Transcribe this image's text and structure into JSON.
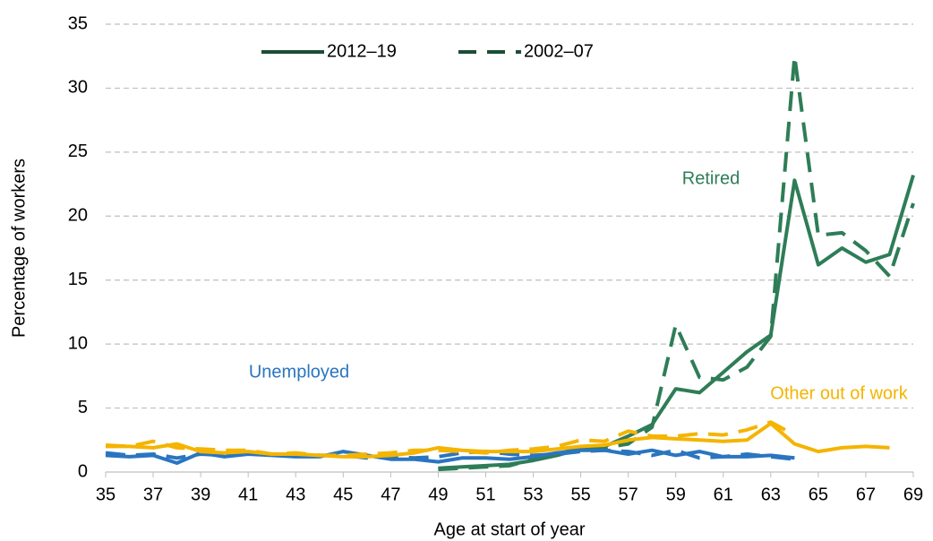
{
  "chart_data": {
    "type": "line",
    "x_label": "Age at start of year",
    "y_label": "Percentage of workers",
    "x": [
      35,
      36,
      37,
      38,
      39,
      40,
      41,
      42,
      43,
      44,
      45,
      46,
      47,
      48,
      49,
      50,
      51,
      52,
      53,
      54,
      55,
      56,
      57,
      58,
      59,
      60,
      61,
      62,
      63,
      64,
      65,
      66,
      67,
      68,
      69
    ],
    "xlim": [
      35,
      69
    ],
    "xticks": [
      35,
      37,
      39,
      41,
      43,
      45,
      47,
      49,
      51,
      53,
      55,
      57,
      59,
      61,
      63,
      65,
      67,
      69
    ],
    "ylim": [
      0,
      35
    ],
    "yticks": [
      0,
      5,
      10,
      15,
      20,
      25,
      30,
      35
    ],
    "grid": true,
    "legend": {
      "position": "top",
      "color": "#1d4d36",
      "entries": [
        {
          "name": "2012–19",
          "dash": false
        },
        {
          "name": "2002–07",
          "dash": true
        }
      ]
    },
    "groups": [
      {
        "label": "Retired",
        "color": "#2e7d57",
        "series": [
          {
            "values": [
              null,
              null,
              null,
              null,
              null,
              null,
              null,
              null,
              null,
              null,
              null,
              null,
              null,
              null,
              0.3,
              0.4,
              0.5,
              0.6,
              0.9,
              1.3,
              1.8,
              2.0,
              2.8,
              3.7,
              6.5,
              6.2,
              7.8,
              9.4,
              10.7,
              22.8,
              16.2,
              17.5,
              16.4,
              17.0,
              23.2
            ]
          },
          {
            "values": [
              null,
              null,
              null,
              null,
              null,
              null,
              null,
              null,
              null,
              null,
              null,
              null,
              null,
              null,
              0.2,
              0.3,
              0.4,
              0.5,
              1.0,
              1.4,
              1.9,
              1.9,
              2.2,
              3.5,
              11.5,
              7.4,
              7.2,
              8.2,
              10.6,
              32.5,
              18.5,
              18.7,
              17.3,
              15.3,
              21.0
            ]
          }
        ]
      },
      {
        "label": "Unemployed",
        "color": "#2a75c0",
        "series": [
          {
            "values": [
              1.3,
              1.2,
              1.3,
              0.7,
              1.5,
              1.2,
              1.4,
              1.3,
              1.2,
              1.2,
              1.6,
              1.3,
              1.0,
              1.0,
              0.8,
              1.1,
              1.1,
              1.0,
              1.2,
              1.5,
              1.7,
              1.7,
              1.4,
              1.7,
              1.3,
              1.6,
              1.2,
              1.2,
              1.3,
              1.1,
              null,
              null,
              null,
              null,
              null
            ]
          },
          {
            "values": [
              1.5,
              1.3,
              1.4,
              1.1,
              1.4,
              1.3,
              1.5,
              1.4,
              1.4,
              1.3,
              1.3,
              1.1,
              1.2,
              1.1,
              1.2,
              1.5,
              1.6,
              1.4,
              1.3,
              1.4,
              1.6,
              1.7,
              1.6,
              1.3,
              1.7,
              1.1,
              1.2,
              1.4,
              1.2,
              1.0,
              null,
              null,
              null,
              null,
              null
            ]
          }
        ]
      },
      {
        "label": "Other out of work",
        "color": "#f4b400",
        "series": [
          {
            "values": [
              2.0,
              2.0,
              1.9,
              2.2,
              1.6,
              1.5,
              1.6,
              1.4,
              1.4,
              1.3,
              1.2,
              1.2,
              1.3,
              1.5,
              1.9,
              1.7,
              1.6,
              1.6,
              1.6,
              1.8,
              2.0,
              2.1,
              2.5,
              2.7,
              2.6,
              2.5,
              2.4,
              2.5,
              3.8,
              2.2,
              1.6,
              1.9,
              2.0,
              1.9,
              null
            ]
          },
          {
            "values": [
              2.1,
              2.0,
              2.4,
              1.9,
              1.8,
              1.7,
              1.7,
              1.4,
              1.5,
              1.3,
              1.3,
              1.4,
              1.5,
              1.7,
              1.7,
              1.6,
              1.5,
              1.7,
              1.8,
              2.0,
              2.5,
              2.4,
              3.2,
              2.8,
              2.8,
              3.0,
              2.9,
              3.3,
              3.9,
              2.9,
              null,
              null,
              null,
              null,
              null
            ]
          }
        ]
      }
    ]
  }
}
